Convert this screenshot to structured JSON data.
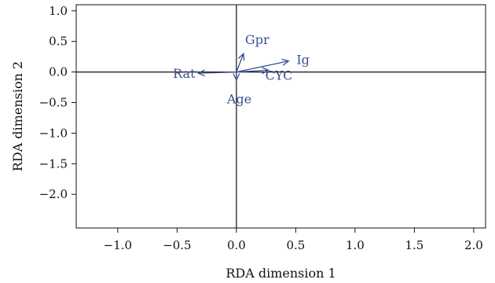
{
  "chart_data": {
    "type": "scatter",
    "subtype": "biplot-vectors",
    "title": "",
    "xlabel": "RDA dimension 1",
    "ylabel": "RDA dimension 2",
    "xlim": [
      -1.35,
      2.1
    ],
    "ylim": [
      -2.55,
      1.1
    ],
    "xticks": [
      -1.0,
      -0.5,
      0.0,
      0.5,
      1.0,
      1.5,
      2.0
    ],
    "yticks": [
      1.0,
      0.5,
      0.0,
      -0.5,
      -1.0,
      -1.5,
      -2.0
    ],
    "xtick_labels": [
      "−1.0",
      "−0.5",
      "0.0",
      "0.5",
      "1.0",
      "1.5",
      "2.0"
    ],
    "ytick_labels": [
      "1.0",
      "0.5",
      "0.0",
      "−0.5",
      "−1.0",
      "−1.5",
      "−2.0"
    ],
    "reference_lines": {
      "x": 0,
      "y": 0
    },
    "grid": false,
    "legend": "none",
    "vector_color": "#3b4f8f",
    "axis_color": "#111111",
    "vectors": [
      {
        "name": "Gpr",
        "x": 0.06,
        "y": 0.3
      },
      {
        "name": "Ig",
        "x": 0.44,
        "y": 0.18
      },
      {
        "name": "CYC",
        "x": 0.27,
        "y": 0.03
      },
      {
        "name": "Rat",
        "x": -0.32,
        "y": -0.02
      },
      {
        "name": "Age",
        "x": 0.0,
        "y": -0.13
      }
    ]
  }
}
